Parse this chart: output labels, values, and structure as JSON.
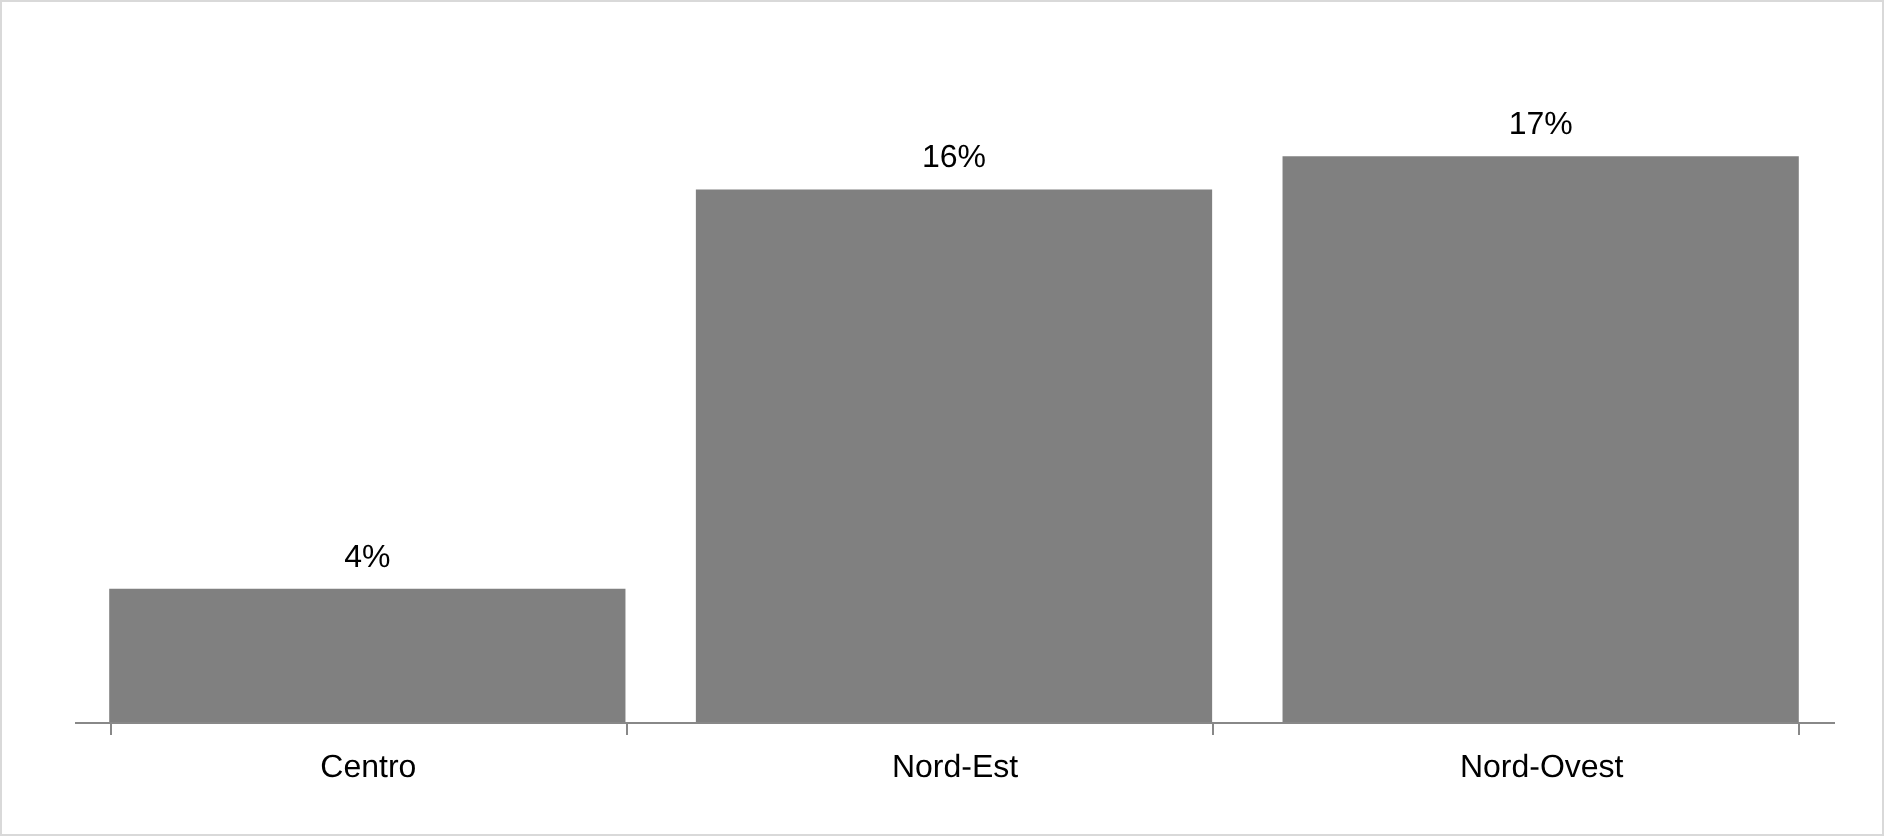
{
  "chart_data": {
    "type": "bar",
    "categories": [
      "Centro",
      "Nord-Est",
      "Nord-Ovest"
    ],
    "values": [
      4,
      16,
      17
    ],
    "value_labels": [
      "4%",
      "16%",
      "17%"
    ],
    "color": "#808080",
    "grid": false
  }
}
